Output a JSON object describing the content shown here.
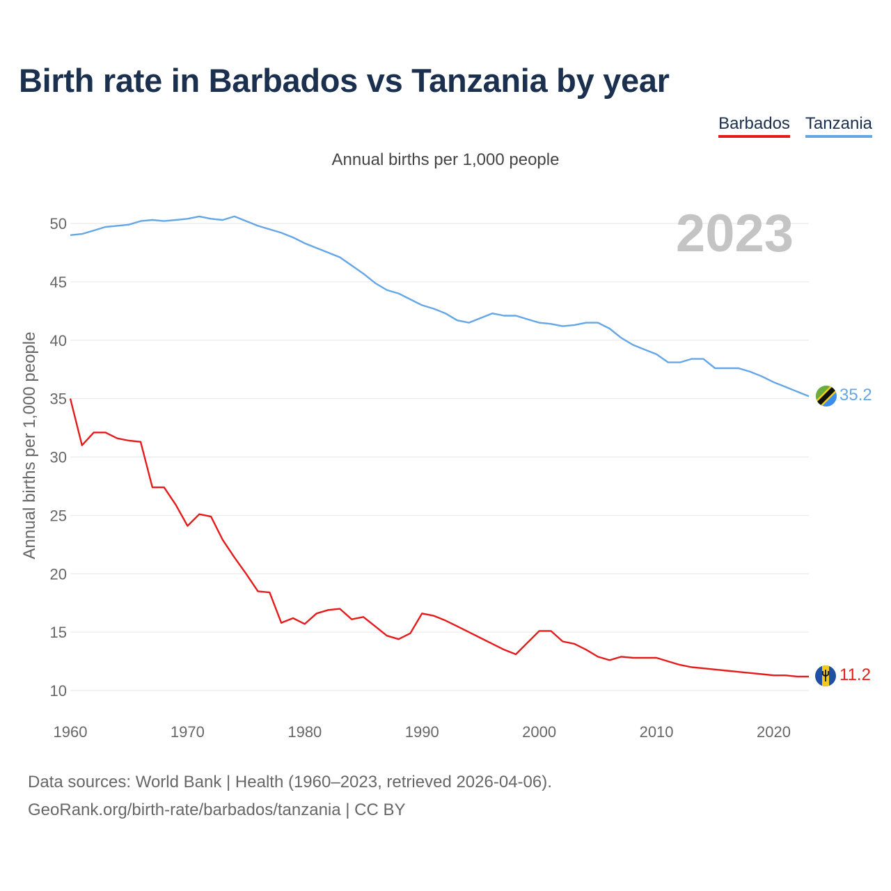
{
  "title": "Birth rate in Barbados vs Tanzania by year",
  "subtitle": "Annual births per 1,000 people",
  "legend": [
    {
      "label": "Barbados",
      "color": "#e51b1b"
    },
    {
      "label": "Tanzania",
      "color": "#64a6e6"
    }
  ],
  "year_overlay": "2023",
  "footer": {
    "line1": "Data sources: World Bank | Health (1960–2023, retrieved 2026-04-06).",
    "line2": "GeoRank.org/birth-rate/barbados/tanzania | CC BY"
  },
  "chart_data": {
    "type": "line",
    "title": "Birth rate in Barbados vs Tanzania by year",
    "ylabel": "Annual births per 1,000 people",
    "xlabel": "",
    "xlim": [
      1960,
      2023
    ],
    "ylim": [
      10,
      52
    ],
    "yticks": [
      10,
      15,
      20,
      25,
      30,
      35,
      40,
      45,
      50
    ],
    "xticks": [
      1960,
      1970,
      1980,
      1990,
      2000,
      2010,
      2020
    ],
    "grid": true,
    "x": [
      1960,
      1961,
      1962,
      1963,
      1964,
      1965,
      1966,
      1967,
      1968,
      1969,
      1970,
      1971,
      1972,
      1973,
      1974,
      1975,
      1976,
      1977,
      1978,
      1979,
      1980,
      1981,
      1982,
      1983,
      1984,
      1985,
      1986,
      1987,
      1988,
      1989,
      1990,
      1991,
      1992,
      1993,
      1994,
      1995,
      1996,
      1997,
      1998,
      1999,
      2000,
      2001,
      2002,
      2003,
      2004,
      2005,
      2006,
      2007,
      2008,
      2009,
      2010,
      2011,
      2012,
      2013,
      2014,
      2015,
      2016,
      2017,
      2018,
      2019,
      2020,
      2021,
      2022,
      2023
    ],
    "series": [
      {
        "name": "Barbados",
        "color": "#e51b1b",
        "end_label": "11.2",
        "values": [
          35.0,
          31.0,
          32.1,
          32.1,
          31.6,
          31.4,
          31.3,
          27.4,
          27.4,
          25.9,
          24.1,
          25.1,
          24.9,
          22.9,
          21.4,
          20.0,
          18.5,
          18.4,
          15.8,
          16.2,
          15.7,
          16.6,
          16.9,
          17.0,
          16.1,
          16.3,
          15.5,
          14.7,
          14.4,
          14.9,
          16.6,
          16.4,
          16.0,
          15.5,
          15.0,
          14.5,
          14.0,
          13.5,
          13.1,
          14.1,
          15.1,
          15.1,
          14.2,
          14.0,
          13.5,
          12.9,
          12.6,
          12.9,
          12.8,
          12.8,
          12.8,
          12.5,
          12.2,
          12.0,
          11.9,
          11.8,
          11.7,
          11.6,
          11.5,
          11.4,
          11.3,
          11.3,
          11.2,
          11.2
        ]
      },
      {
        "name": "Tanzania",
        "color": "#64a6e6",
        "end_label": "35.2",
        "values": [
          49.0,
          49.1,
          49.4,
          49.7,
          49.8,
          49.9,
          50.2,
          50.3,
          50.2,
          50.3,
          50.4,
          50.6,
          50.4,
          50.3,
          50.6,
          50.2,
          49.8,
          49.5,
          49.2,
          48.8,
          48.3,
          47.9,
          47.5,
          47.1,
          46.4,
          45.7,
          44.9,
          44.3,
          44.0,
          43.5,
          43.0,
          42.7,
          42.3,
          41.7,
          41.5,
          41.9,
          42.3,
          42.1,
          42.1,
          41.8,
          41.5,
          41.4,
          41.2,
          41.3,
          41.5,
          41.5,
          41.0,
          40.2,
          39.6,
          39.2,
          38.8,
          38.1,
          38.1,
          38.4,
          38.4,
          37.6,
          37.6,
          37.6,
          37.3,
          36.9,
          36.4,
          36.0,
          35.6,
          35.2
        ]
      }
    ]
  }
}
